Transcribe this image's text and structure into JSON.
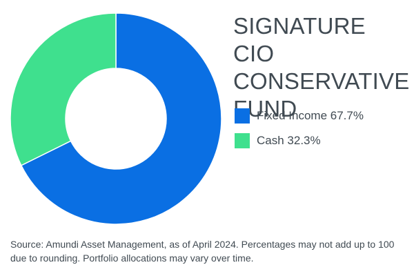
{
  "chart_data": {
    "type": "pie",
    "style": "donut",
    "title_lines": [
      "SIGNATURE CIO",
      "CONSERVATIVE",
      "FUND"
    ],
    "slices": [
      {
        "label": "Fixed Income",
        "value": 67.7,
        "display": "67.7%",
        "color": "#0a6fe3"
      },
      {
        "label": "Cash",
        "value": 32.3,
        "display": "32.3%",
        "color": "#3fe08e"
      }
    ],
    "legend_placement": "right",
    "start_angle_deg": 0,
    "direction": "clockwise"
  },
  "source_note": "Source: Amundi Asset Management, as of April 2024. Percentages may not add up to 100 due to rounding. Portfolio allocations may vary over time."
}
